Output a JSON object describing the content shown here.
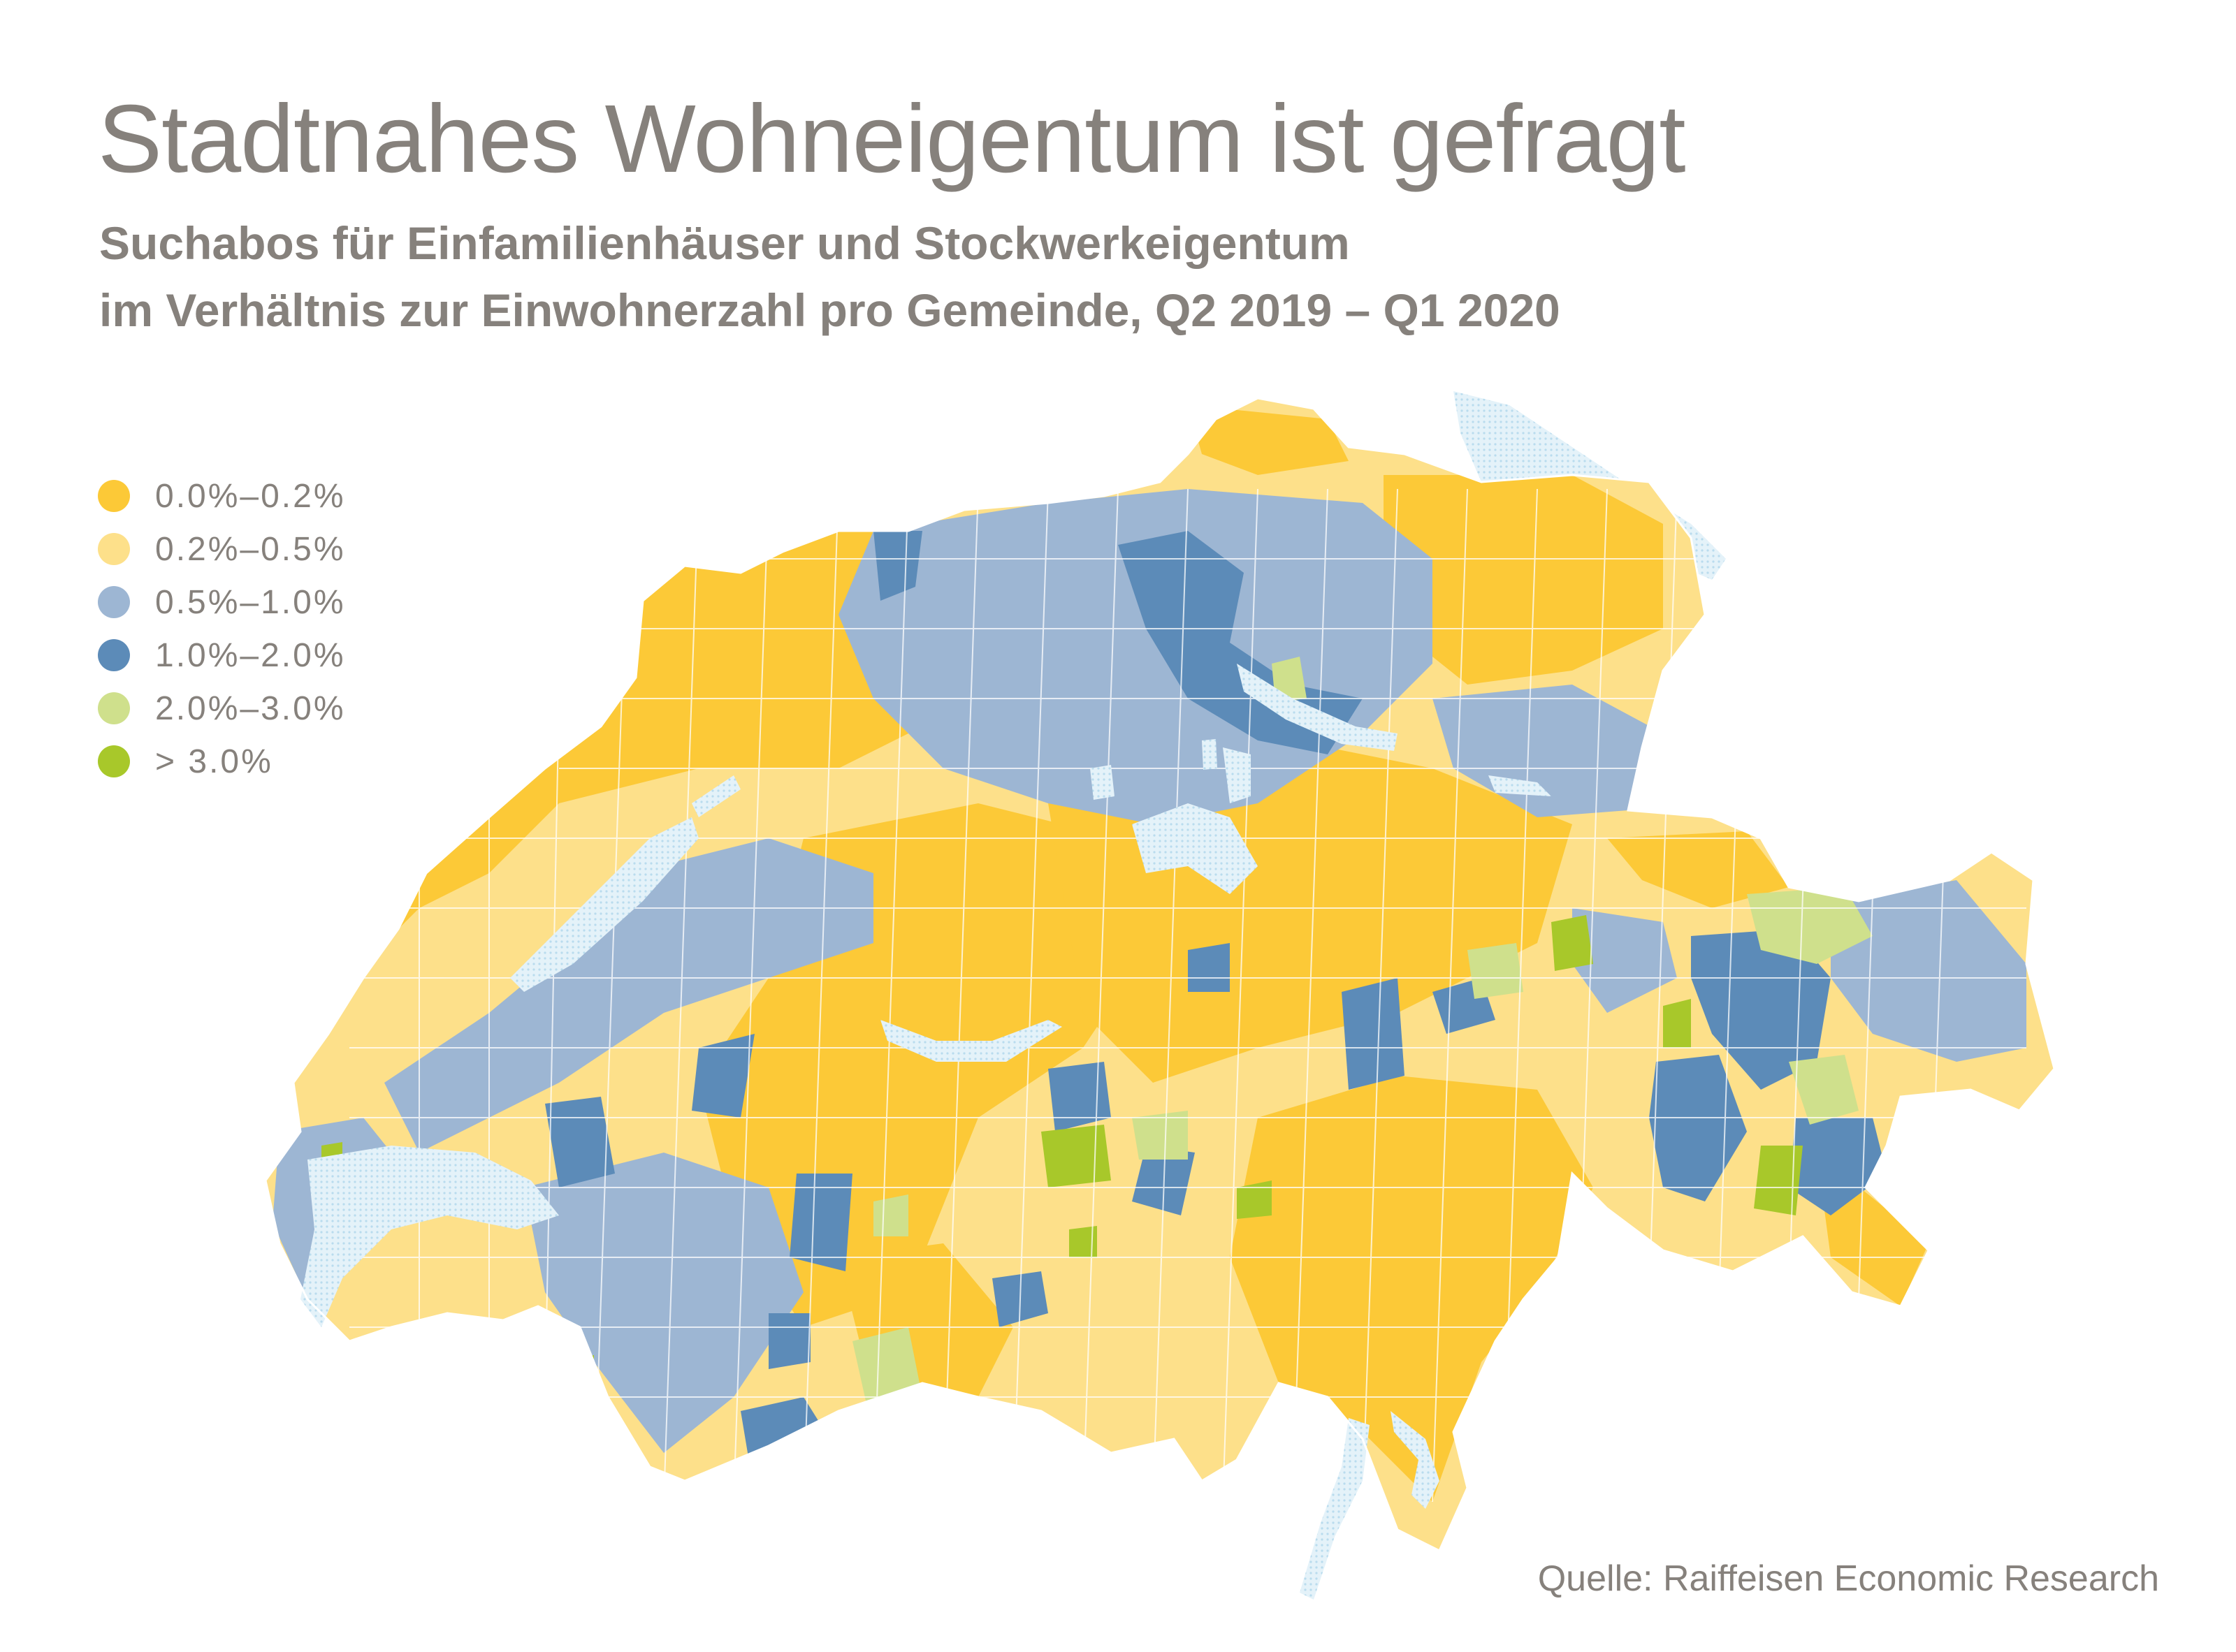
{
  "title": "Stadtnahes Wohneigentum ist gefragt",
  "subtitle": {
    "line1": "Suchabos für Einfamilienhäuser und Stockwerkeigentum",
    "line2": "im Verhältnis zur Einwohnerzahl pro Gemeinde, Q2 2019 – Q1 2020"
  },
  "legend": [
    {
      "label": "0.0%–0.2%",
      "color": "#fcc937"
    },
    {
      "label": "0.2%–0.5%",
      "color": "#fde08a"
    },
    {
      "label": "0.5%–1.0%",
      "color": "#9db6d3"
    },
    {
      "label": "1.0%–2.0%",
      "color": "#5c8bb8"
    },
    {
      "label": "2.0%–3.0%",
      "color": "#cfe08c"
    },
    {
      "label": "> 3.0%",
      "color": "#a8c82a"
    }
  ],
  "map": {
    "region": "Switzerland",
    "lake_color": "#d8ecf5"
  },
  "source": "Quelle: Raiffeisen Economic Research"
}
